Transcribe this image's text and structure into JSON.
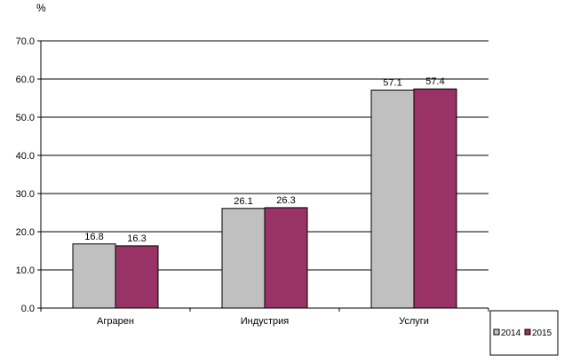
{
  "chart_data": {
    "type": "bar",
    "unit_label": "%",
    "categories": [
      "Аграрен",
      "Индустрия",
      "Услуги"
    ],
    "series": [
      {
        "name": "2014",
        "values": [
          16.8,
          26.1,
          57.1
        ],
        "color": "#c0c0c0"
      },
      {
        "name": "2015",
        "values": [
          16.3,
          26.3,
          57.4
        ],
        "color": "#993366"
      }
    ],
    "ylim": [
      0,
      70
    ],
    "y_ticks": [
      "0.0",
      "10.0",
      "20.0",
      "30.0",
      "40.0",
      "50.0",
      "60.0",
      "70.0"
    ],
    "data_labels": [
      [
        "16.8",
        "26.1",
        "57.1"
      ],
      [
        "16.3",
        "26.3",
        "57.4"
      ]
    ],
    "grid": true,
    "legend_position": "bottom-right",
    "xlabel": "",
    "ylabel": ""
  }
}
